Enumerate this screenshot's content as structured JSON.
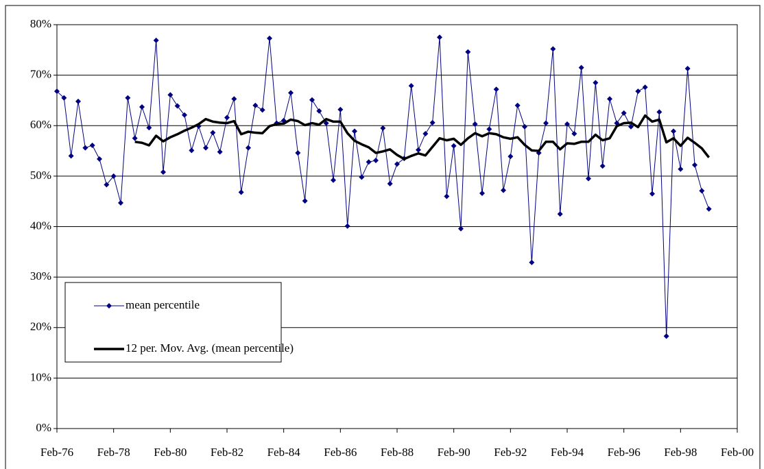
{
  "chart_data": {
    "type": "line",
    "x": [
      "Feb-76",
      "May-76",
      "Aug-76",
      "Nov-76",
      "Feb-77",
      "May-77",
      "Aug-77",
      "Nov-77",
      "Feb-78",
      "May-78",
      "Aug-78",
      "Nov-78",
      "Feb-79",
      "May-79",
      "Aug-79",
      "Nov-79",
      "Feb-80",
      "May-80",
      "Aug-80",
      "Nov-80",
      "Feb-81",
      "May-81",
      "Aug-81",
      "Nov-81",
      "Feb-82",
      "May-82",
      "Aug-82",
      "Nov-82",
      "Feb-83",
      "May-83",
      "Aug-83",
      "Nov-83",
      "Feb-84",
      "May-84",
      "Aug-84",
      "Nov-84",
      "Feb-85",
      "May-85",
      "Aug-85",
      "Nov-85",
      "Feb-86",
      "May-86",
      "Aug-86",
      "Nov-86",
      "Feb-87",
      "May-87",
      "Aug-87",
      "Nov-87",
      "Feb-88",
      "May-88",
      "Aug-88",
      "Nov-88",
      "Feb-89",
      "May-89",
      "Aug-89",
      "Nov-89",
      "Feb-90",
      "May-90",
      "Aug-90",
      "Nov-90",
      "Feb-91",
      "May-91",
      "Aug-91",
      "Nov-91",
      "Feb-92",
      "May-92",
      "Aug-92",
      "Nov-92",
      "Feb-93",
      "May-93",
      "Aug-93",
      "Nov-93",
      "Feb-94",
      "May-94",
      "Aug-94",
      "Nov-94",
      "Feb-95",
      "May-95",
      "Aug-95",
      "Nov-95",
      "Feb-96",
      "May-96",
      "Aug-96",
      "Nov-96",
      "Feb-97",
      "May-97",
      "Aug-97",
      "Nov-97",
      "Feb-98",
      "May-98",
      "Aug-98",
      "Nov-98",
      "Feb-99"
    ],
    "series": [
      {
        "name": "mean percentile",
        "color": "#000080",
        "marker": "diamond",
        "values": [
          66.8,
          65.5,
          54,
          64.8,
          55.6,
          56.1,
          53.4,
          48.3,
          50,
          44.7,
          65.5,
          57.5,
          63.7,
          59.6,
          76.9,
          50.8,
          66.1,
          63.9,
          62.1,
          55.1,
          59.9,
          55.6,
          58.6,
          54.8,
          61.6,
          65.3,
          46.8,
          55.6,
          64,
          63.1,
          77.3,
          60.5,
          61,
          66.5,
          54.6,
          45.1,
          65.1,
          62.9,
          60.5,
          49.2,
          63.2,
          40.1,
          58.9,
          49.8,
          52.8,
          53.1,
          59.5,
          48.5,
          52.4,
          53.5,
          67.9,
          55.2,
          58.4,
          60.6,
          77.5,
          46,
          56,
          39.6,
          74.6,
          60.3,
          46.6,
          59.3,
          67.2,
          47.2,
          53.9,
          64,
          59.8,
          32.9,
          54.6,
          60.5,
          75.2,
          42.5,
          60.3,
          58.4,
          71.5,
          49.5,
          68.5,
          52,
          65.3,
          60.5,
          62.5,
          59.8,
          66.8,
          67.6,
          46.5,
          62.7,
          18.3,
          58.9,
          51.4,
          71.3,
          52.2,
          47.1,
          43.5
        ]
      },
      {
        "name": "12 per. Mov. Avg. (mean percentile)",
        "color": "#000000",
        "values": [
          null,
          null,
          null,
          null,
          null,
          null,
          null,
          null,
          null,
          null,
          null,
          56.8,
          56.6,
          56.1,
          58,
          56.9,
          57.7,
          58.3,
          59,
          59.6,
          60.3,
          61.3,
          60.8,
          60.6,
          60.5,
          60.9,
          58.3,
          58.8,
          58.6,
          58.5,
          59.9,
          60.3,
          60.4,
          61.2,
          60.9,
          60.1,
          60.5,
          60.2,
          61.3,
          60.8,
          60.8,
          58.5,
          57,
          56.3,
          55.7,
          54.6,
          54.9,
          55.3,
          54.2,
          53.4,
          54,
          54.5,
          54.1,
          55.8,
          57.5,
          57.1,
          57.4,
          56.2,
          57.5,
          58.5,
          57.9,
          58.5,
          58.3,
          57.7,
          57.4,
          57.7,
          56.2,
          55.1,
          55,
          56.8,
          56.8,
          55.3,
          56.5,
          56.4,
          56.8,
          56.8,
          58.2,
          57.1,
          57.5,
          59.9,
          60.5,
          60.6,
          59.7,
          62,
          60.8,
          61.2,
          56.7,
          57.5,
          56,
          57.6,
          56.6,
          55.5,
          53.7
        ]
      }
    ],
    "xlim": [
      "Feb-76",
      "Feb-00"
    ],
    "xticks": [
      "Feb-76",
      "Feb-78",
      "Feb-80",
      "Feb-82",
      "Feb-84",
      "Feb-86",
      "Feb-88",
      "Feb-90",
      "Feb-92",
      "Feb-94",
      "Feb-96",
      "Feb-98",
      "Feb-00"
    ],
    "ylim": [
      0,
      80
    ],
    "yticks": [
      {
        "value": 0,
        "label": "0%"
      },
      {
        "value": 10,
        "label": "10%"
      },
      {
        "value": 20,
        "label": "20%"
      },
      {
        "value": 30,
        "label": "30%"
      },
      {
        "value": 40,
        "label": "40%"
      },
      {
        "value": 50,
        "label": "50%"
      },
      {
        "value": 60,
        "label": "60%"
      },
      {
        "value": 70,
        "label": "70%"
      },
      {
        "value": 80,
        "label": "80%"
      }
    ],
    "grid": true,
    "legend": "bottom-left"
  }
}
